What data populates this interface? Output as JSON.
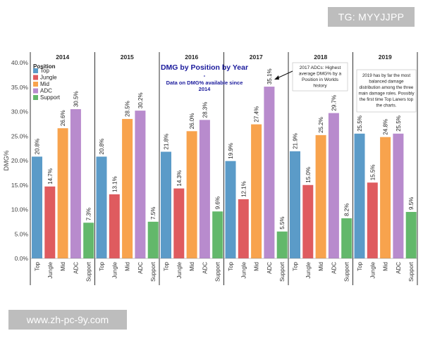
{
  "watermarks": {
    "top": "TG: MYYJJPP",
    "bottom": "www.zh-pc-9y.com"
  },
  "chart_data": {
    "type": "bar",
    "title": "DMG by Position by Year",
    "title_separator": "-",
    "subtitle": "Data on DMG% available since 2014",
    "ylabel": "DMG%",
    "ylim": [
      0,
      40
    ],
    "yticks": [
      0,
      5,
      10,
      15,
      20,
      25,
      30,
      35,
      40
    ],
    "ytick_labels": [
      "0.0%",
      "5.0%",
      "10.0%",
      "15.0%",
      "20.0%",
      "25.0%",
      "30.0%",
      "35.0%",
      "40.0%"
    ],
    "grid": false,
    "legend_position": "top-left",
    "legend_title": "Position",
    "categories": [
      "Top",
      "Jungle",
      "Mid",
      "ADC",
      "Support"
    ],
    "colors": {
      "Top": "#5b9bc8",
      "Jungle": "#df5b5f",
      "Mid": "#f8a34d",
      "ADC": "#b88bcd",
      "Support": "#63b86b"
    },
    "years": [
      {
        "year": "2014",
        "values": [
          20.8,
          14.7,
          26.6,
          30.5,
          7.3
        ],
        "labels": [
          "20.8%",
          "14.7%",
          "26.6%",
          "30.5%",
          "7.3%"
        ]
      },
      {
        "year": "2015",
        "values": [
          20.8,
          13.1,
          28.5,
          30.2,
          7.5
        ],
        "labels": [
          "20.8%",
          "13.1%",
          "28.5%",
          "30.2%",
          "7.5%"
        ]
      },
      {
        "year": "2016",
        "values": [
          21.8,
          14.3,
          26.0,
          28.3,
          9.6
        ],
        "labels": [
          "21.8%",
          "14.3%",
          "26.0%",
          "28.3%",
          "9.6%"
        ]
      },
      {
        "year": "2017",
        "values": [
          19.9,
          12.1,
          27.4,
          35.1,
          5.5
        ],
        "labels": [
          "19.9%",
          "12.1%",
          "27.4%",
          "35.1%",
          "5.5%"
        ]
      },
      {
        "year": "2018",
        "values": [
          21.9,
          15.0,
          25.2,
          29.7,
          8.2
        ],
        "labels": [
          "21.9%",
          "15.0%",
          "25.2%",
          "29.7%",
          "8.2%"
        ]
      },
      {
        "year": "2019",
        "values": [
          25.5,
          15.5,
          24.8,
          25.5,
          9.5
        ],
        "labels": [
          "25.5%",
          "15.5%",
          "24.8%",
          "25.5%",
          "9.5%"
        ]
      }
    ],
    "annotations": [
      {
        "year": "2017",
        "category": "ADC",
        "lines": [
          "2017 ADCs: Highest",
          "average DMG% by a",
          "Position in Worlds",
          "history"
        ]
      },
      {
        "year": "2019",
        "lines": [
          "2019 has by far the most",
          "balanced damage",
          "distribution among the three",
          "main damage roles. Possibly",
          "the first time Top Laners top",
          "the charts."
        ]
      }
    ]
  }
}
